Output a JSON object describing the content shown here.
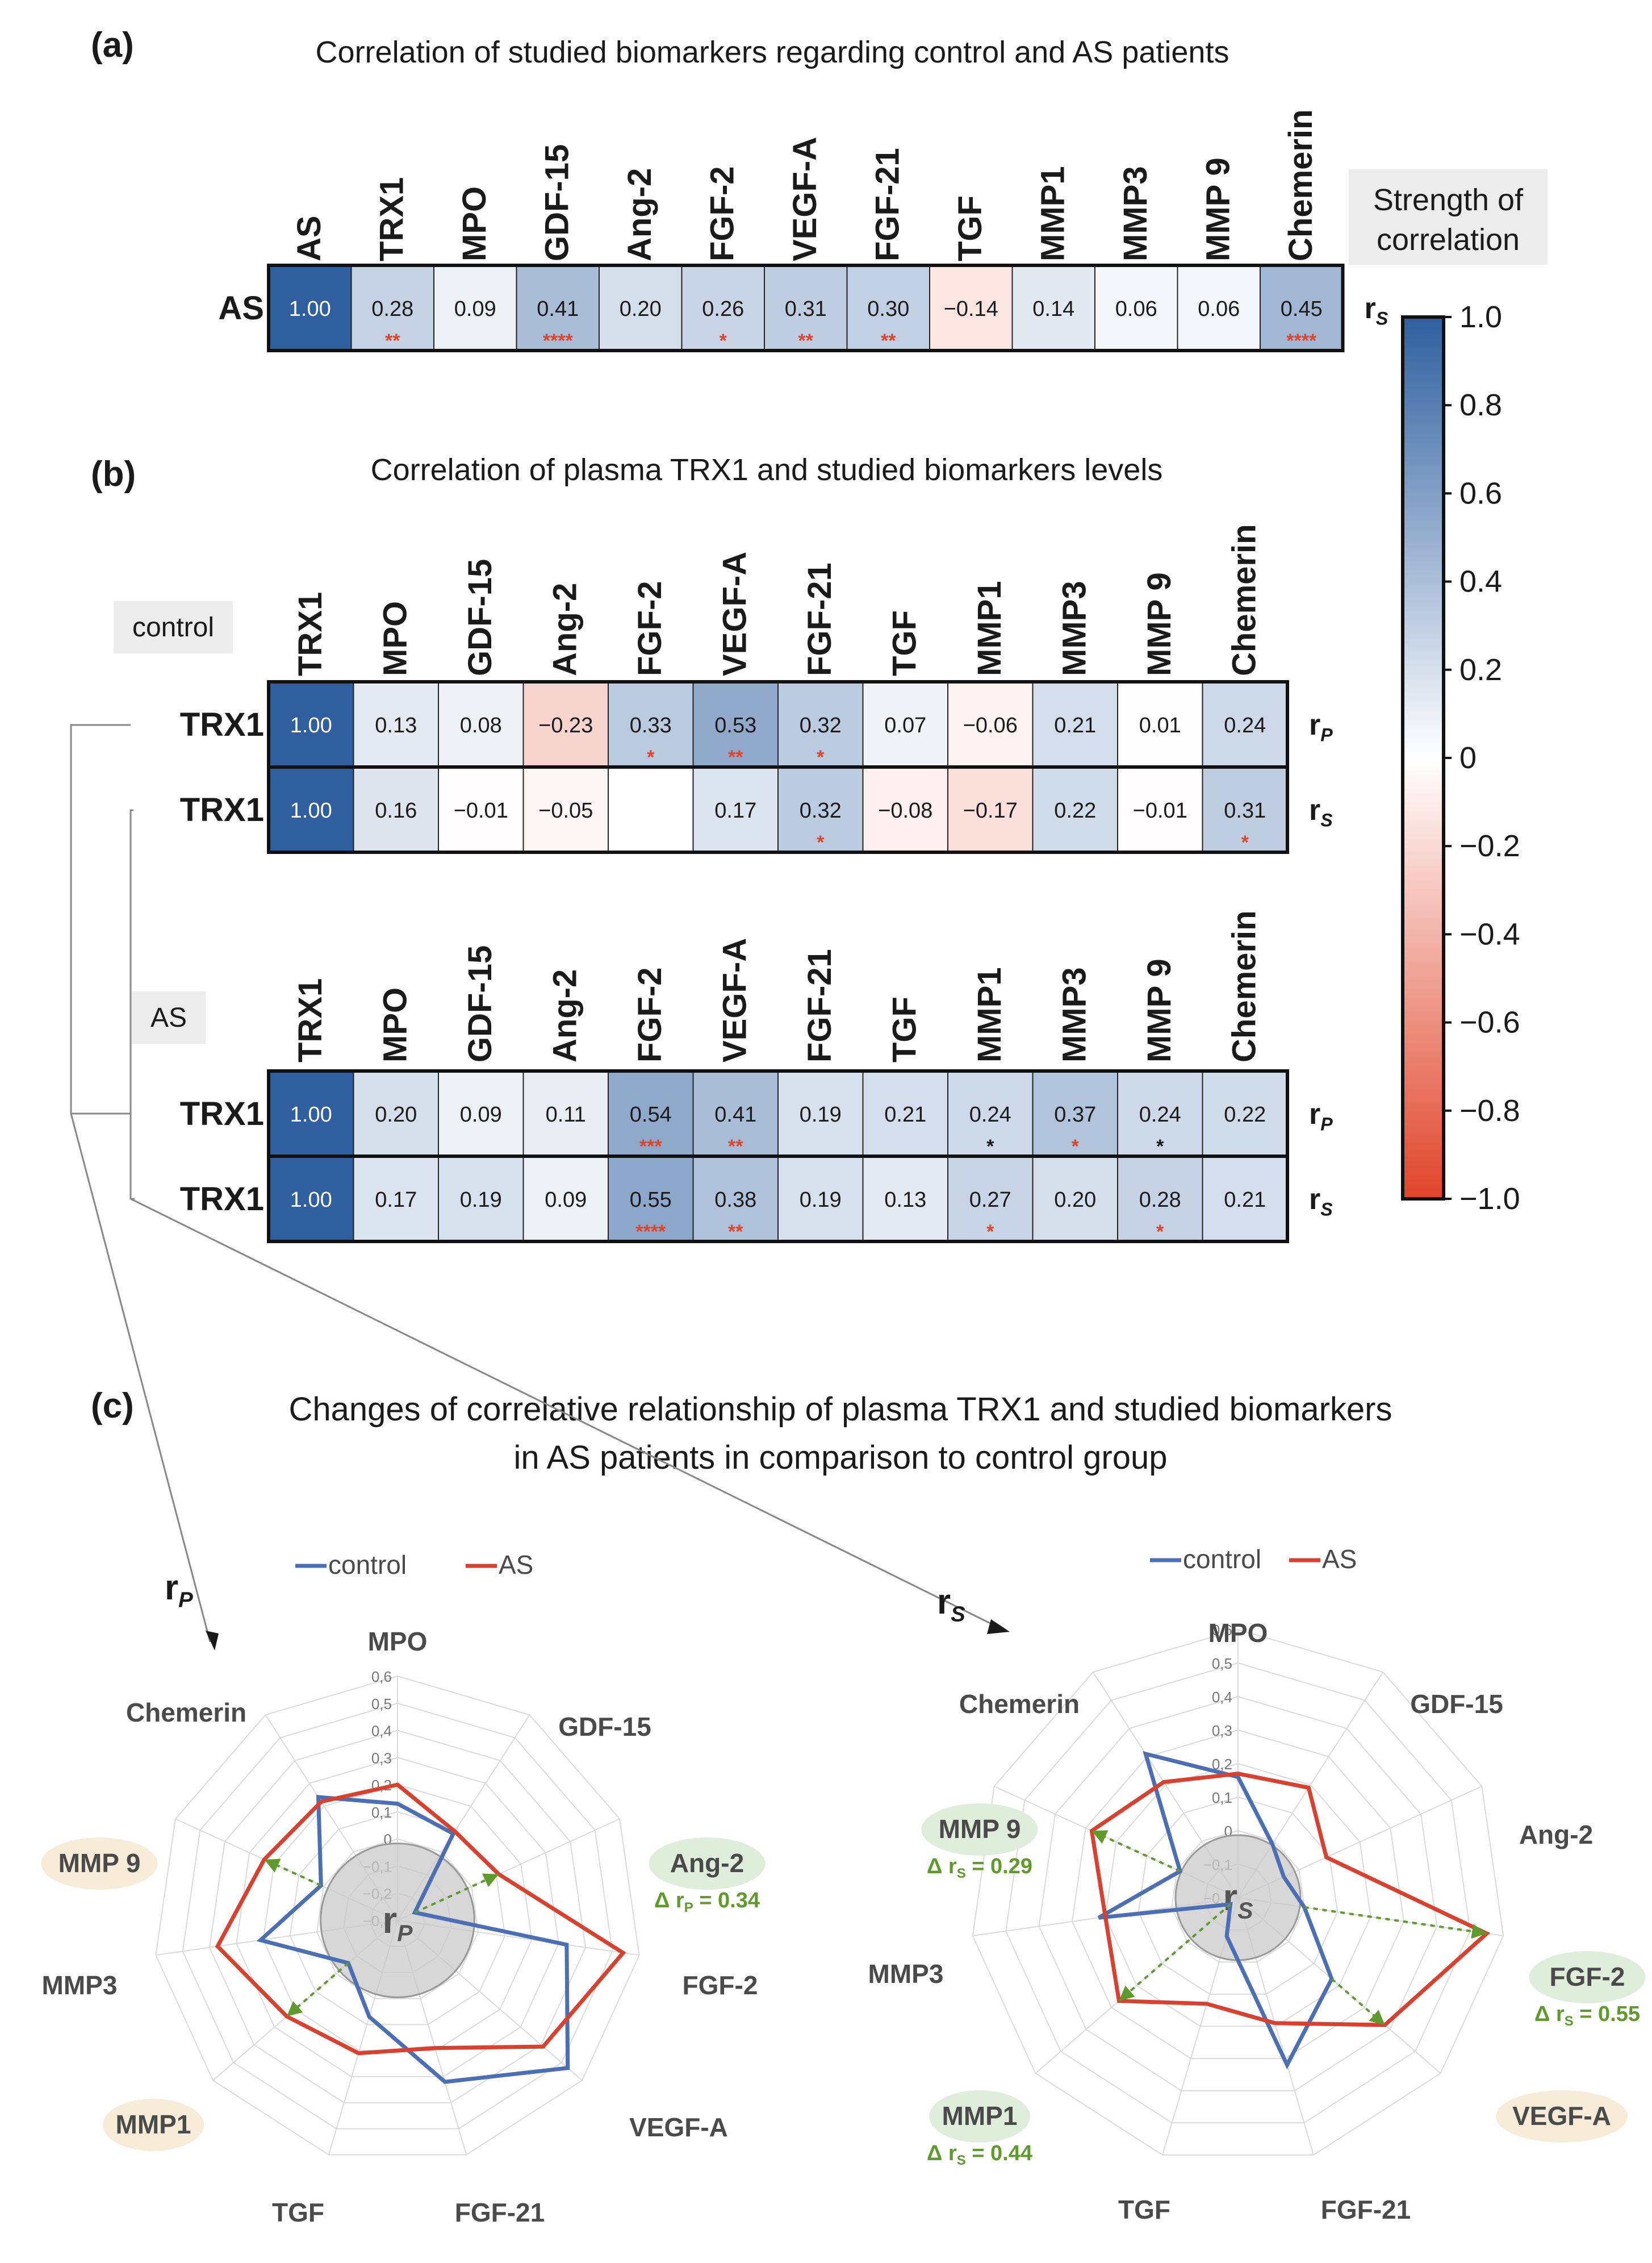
{
  "panel_labels": {
    "a": "(a)",
    "b": "(b)",
    "c": "(c)"
  },
  "titles": {
    "a": "Correlation of studied biomarkers regarding control and AS patients",
    "b": "Correlation of plasma TRX1 and studied biomarkers levels",
    "c1": "Changes of correlative relationship of plasma TRX1 and studied biomarkers",
    "c2": "in AS patients in comparison to control group"
  },
  "colorbar": {
    "title_line1": "Strength of",
    "title_line2": "correlation",
    "ticks": [
      "1.0",
      "0.8",
      "0.6",
      "0.4",
      "0.2",
      "0",
      "−0.2",
      "−0.4",
      "−0.6",
      "−0.8",
      "−1.0"
    ],
    "color_pos": "#2f5f9e",
    "color_zero": "#ffffff",
    "color_neg": "#e0452b"
  },
  "group_labels": {
    "control": "control",
    "as": "AS"
  },
  "legend": {
    "control": "control",
    "as": "AS"
  },
  "colors": {
    "control": "#4a6fb5",
    "as": "#d9402e",
    "delta": "#5e9a2c",
    "star_red": "#e0452b",
    "star_dark": "#1a1a1a"
  },
  "chart_data": [
    {
      "type": "heatmap",
      "title": "Correlation of studied biomarkers regarding control and AS patients",
      "columns": [
        "AS",
        "TRX1",
        "MPO",
        "GDF-15",
        "Ang-2",
        "FGF-2",
        "VEGF-A",
        "FGF-21",
        "TGF",
        "MMP1",
        "MMP3",
        "MMP 9",
        "Chemerin"
      ],
      "rows": [
        {
          "label": "AS",
          "stat": "rS",
          "values": [
            1.0,
            0.28,
            0.09,
            0.41,
            0.2,
            0.26,
            0.31,
            0.3,
            -0.14,
            0.14,
            0.06,
            0.06,
            0.45
          ],
          "labels": [
            "1.00",
            "0.28",
            "0.09",
            "0.41",
            "0.20",
            "0.26",
            "0.31",
            "0.30",
            "−0.14",
            "0.14",
            "0.06",
            "0.06",
            "0.45"
          ],
          "stars": [
            "",
            "**",
            "",
            "****",
            "",
            "*",
            "**",
            "**",
            "",
            "",
            "",
            "",
            "****"
          ],
          "star_dark": [
            false,
            false,
            false,
            false,
            false,
            false,
            false,
            false,
            false,
            false,
            false,
            false,
            false
          ]
        }
      ],
      "value_range": [
        -1.0,
        1.0
      ]
    },
    {
      "type": "heatmap",
      "title": "Correlation of plasma TRX1 and studied biomarkers levels",
      "group": "control",
      "columns": [
        "TRX1",
        "MPO",
        "GDF-15",
        "Ang-2",
        "FGF-2",
        "VEGF-A",
        "FGF-21",
        "TGF",
        "MMP1",
        "MMP3",
        "MMP 9",
        "Chemerin"
      ],
      "rows": [
        {
          "label": "TRX1",
          "stat": "rP",
          "values": [
            1.0,
            0.13,
            0.08,
            -0.23,
            0.33,
            0.53,
            0.32,
            0.07,
            -0.06,
            0.21,
            0.01,
            0.24
          ],
          "labels": [
            "1.00",
            "0.13",
            "0.08",
            "−0.23",
            "0.33",
            "0.53",
            "0.32",
            "0.07",
            "−0.06",
            "0.21",
            "0.01",
            "0.24"
          ],
          "stars": [
            "",
            "",
            "",
            "",
            "*",
            "**",
            "*",
            "",
            "",
            "",
            "",
            ""
          ],
          "star_dark": [
            false,
            false,
            false,
            false,
            false,
            false,
            false,
            false,
            false,
            false,
            false,
            false
          ]
        },
        {
          "label": "TRX1",
          "stat": "rS",
          "values": [
            1.0,
            0.16,
            -0.01,
            -0.05,
            0.0,
            0.17,
            0.32,
            -0.08,
            -0.17,
            0.22,
            -0.01,
            0.31
          ],
          "labels": [
            "1.00",
            "0.16",
            "−0.01",
            "−0.05",
            "",
            "0.17",
            "0.32",
            "−0.08",
            "−0.17",
            "0.22",
            "−0.01",
            "0.31"
          ],
          "stars": [
            "",
            "",
            "",
            "",
            "",
            "",
            "*",
            "",
            "",
            "",
            "",
            "*"
          ],
          "star_dark": [
            false,
            false,
            false,
            false,
            false,
            false,
            false,
            false,
            false,
            false,
            false,
            false
          ]
        }
      ],
      "value_range": [
        -1.0,
        1.0
      ]
    },
    {
      "type": "heatmap",
      "group": "AS",
      "columns": [
        "TRX1",
        "MPO",
        "GDF-15",
        "Ang-2",
        "FGF-2",
        "VEGF-A",
        "FGF-21",
        "TGF",
        "MMP1",
        "MMP3",
        "MMP 9",
        "Chemerin"
      ],
      "rows": [
        {
          "label": "TRX1",
          "stat": "rP",
          "values": [
            1.0,
            0.2,
            0.09,
            0.11,
            0.54,
            0.41,
            0.19,
            0.21,
            0.24,
            0.37,
            0.24,
            0.22
          ],
          "labels": [
            "1.00",
            "0.20",
            "0.09",
            "0.11",
            "0.54",
            "0.41",
            "0.19",
            "0.21",
            "0.24",
            "0.37",
            "0.24",
            "0.22"
          ],
          "stars": [
            "",
            "",
            "",
            "",
            "***",
            "**",
            "",
            "",
            "*",
            "*",
            "*",
            ""
          ],
          "star_dark": [
            false,
            false,
            false,
            false,
            false,
            false,
            false,
            false,
            true,
            false,
            true,
            false
          ]
        },
        {
          "label": "TRX1",
          "stat": "rS",
          "values": [
            1.0,
            0.17,
            0.19,
            0.09,
            0.55,
            0.38,
            0.19,
            0.13,
            0.27,
            0.2,
            0.28,
            0.21
          ],
          "labels": [
            "1.00",
            "0.17",
            "0.19",
            "0.09",
            "0.55",
            "0.38",
            "0.19",
            "0.13",
            "0.27",
            "0.20",
            "0.28",
            "0.21"
          ],
          "stars": [
            "",
            "",
            "",
            "",
            "****",
            "**",
            "",
            "",
            "*",
            "",
            "*",
            ""
          ],
          "star_dark": [
            false,
            false,
            false,
            false,
            false,
            false,
            false,
            false,
            false,
            false,
            false,
            false
          ]
        }
      ],
      "value_range": [
        -1.0,
        1.0
      ]
    },
    {
      "type": "radar",
      "stat": "rP",
      "title": "Changes of correlative relationship of plasma TRX1 and studied biomarkers in AS patients in comparison to control group",
      "axes": [
        "MPO",
        "GDF-15",
        "Ang-2",
        "FGF-2",
        "VEGF-A",
        "FGF-21",
        "TGF",
        "MMP1",
        "MMP3",
        "MMP 9",
        "Chemerin"
      ],
      "rlim": [
        -0.3,
        0.6
      ],
      "ticks": [
        "0,6",
        "0,5",
        "0,4",
        "0,3",
        "0,2",
        "0,1",
        "0",
        "−0,1",
        "−0,2",
        "−0,3"
      ],
      "series": [
        {
          "name": "control",
          "values": [
            0.13,
            0.08,
            -0.23,
            0.33,
            0.53,
            0.32,
            0.07,
            -0.06,
            0.21,
            0.01,
            0.24
          ]
        },
        {
          "name": "AS",
          "values": [
            0.2,
            0.09,
            0.11,
            0.54,
            0.41,
            0.19,
            0.21,
            0.24,
            0.37,
            0.24,
            0.22
          ]
        }
      ],
      "highlights": [
        {
          "axis": "Ang-2",
          "kind": "green",
          "delta": "Δ r",
          "sub": "P",
          "delta_value": " = 0.34"
        },
        {
          "axis": "MMP 9",
          "kind": "tan"
        },
        {
          "axis": "MMP1",
          "kind": "tan"
        }
      ],
      "arrows": [
        "Ang-2",
        "MMP 9",
        "MMP1"
      ],
      "center_label": "r",
      "center_sub": "P"
    },
    {
      "type": "radar",
      "stat": "rS",
      "axes": [
        "MPO",
        "GDF-15",
        "Ang-2",
        "FGF-2",
        "VEGF-A",
        "FGF-21",
        "TGF",
        "MMP1",
        "MMP3",
        "MMP 9",
        "Chemerin"
      ],
      "rlim": [
        -0.2,
        0.6
      ],
      "ticks": [
        "0,6",
        "0,5",
        "0,4",
        "0,3",
        "0,2",
        "0,1",
        "0",
        "−0,1",
        "−0,2"
      ],
      "series": [
        {
          "name": "control",
          "values": [
            0.16,
            -0.01,
            -0.05,
            0.0,
            0.17,
            0.32,
            -0.08,
            -0.17,
            0.22,
            -0.01,
            0.31
          ]
        },
        {
          "name": "AS",
          "values": [
            0.17,
            0.19,
            0.09,
            0.55,
            0.38,
            0.19,
            0.13,
            0.27,
            0.2,
            0.28,
            0.21
          ]
        }
      ],
      "highlights": [
        {
          "axis": "FGF-2",
          "kind": "green",
          "delta": "Δ r",
          "sub": "S",
          "delta_value": " = 0.55"
        },
        {
          "axis": "MMP1",
          "kind": "green",
          "delta": "Δ r",
          "sub": "S",
          "delta_value": " = 0.44"
        },
        {
          "axis": "MMP 9",
          "kind": "green",
          "delta": "Δ r",
          "sub": "S",
          "delta_value": " = 0.29"
        },
        {
          "axis": "VEGF-A",
          "kind": "tan"
        }
      ],
      "arrows": [
        "FGF-2",
        "MMP1",
        "MMP 9",
        "VEGF-A"
      ],
      "center_label": "r",
      "center_sub": "S"
    }
  ]
}
